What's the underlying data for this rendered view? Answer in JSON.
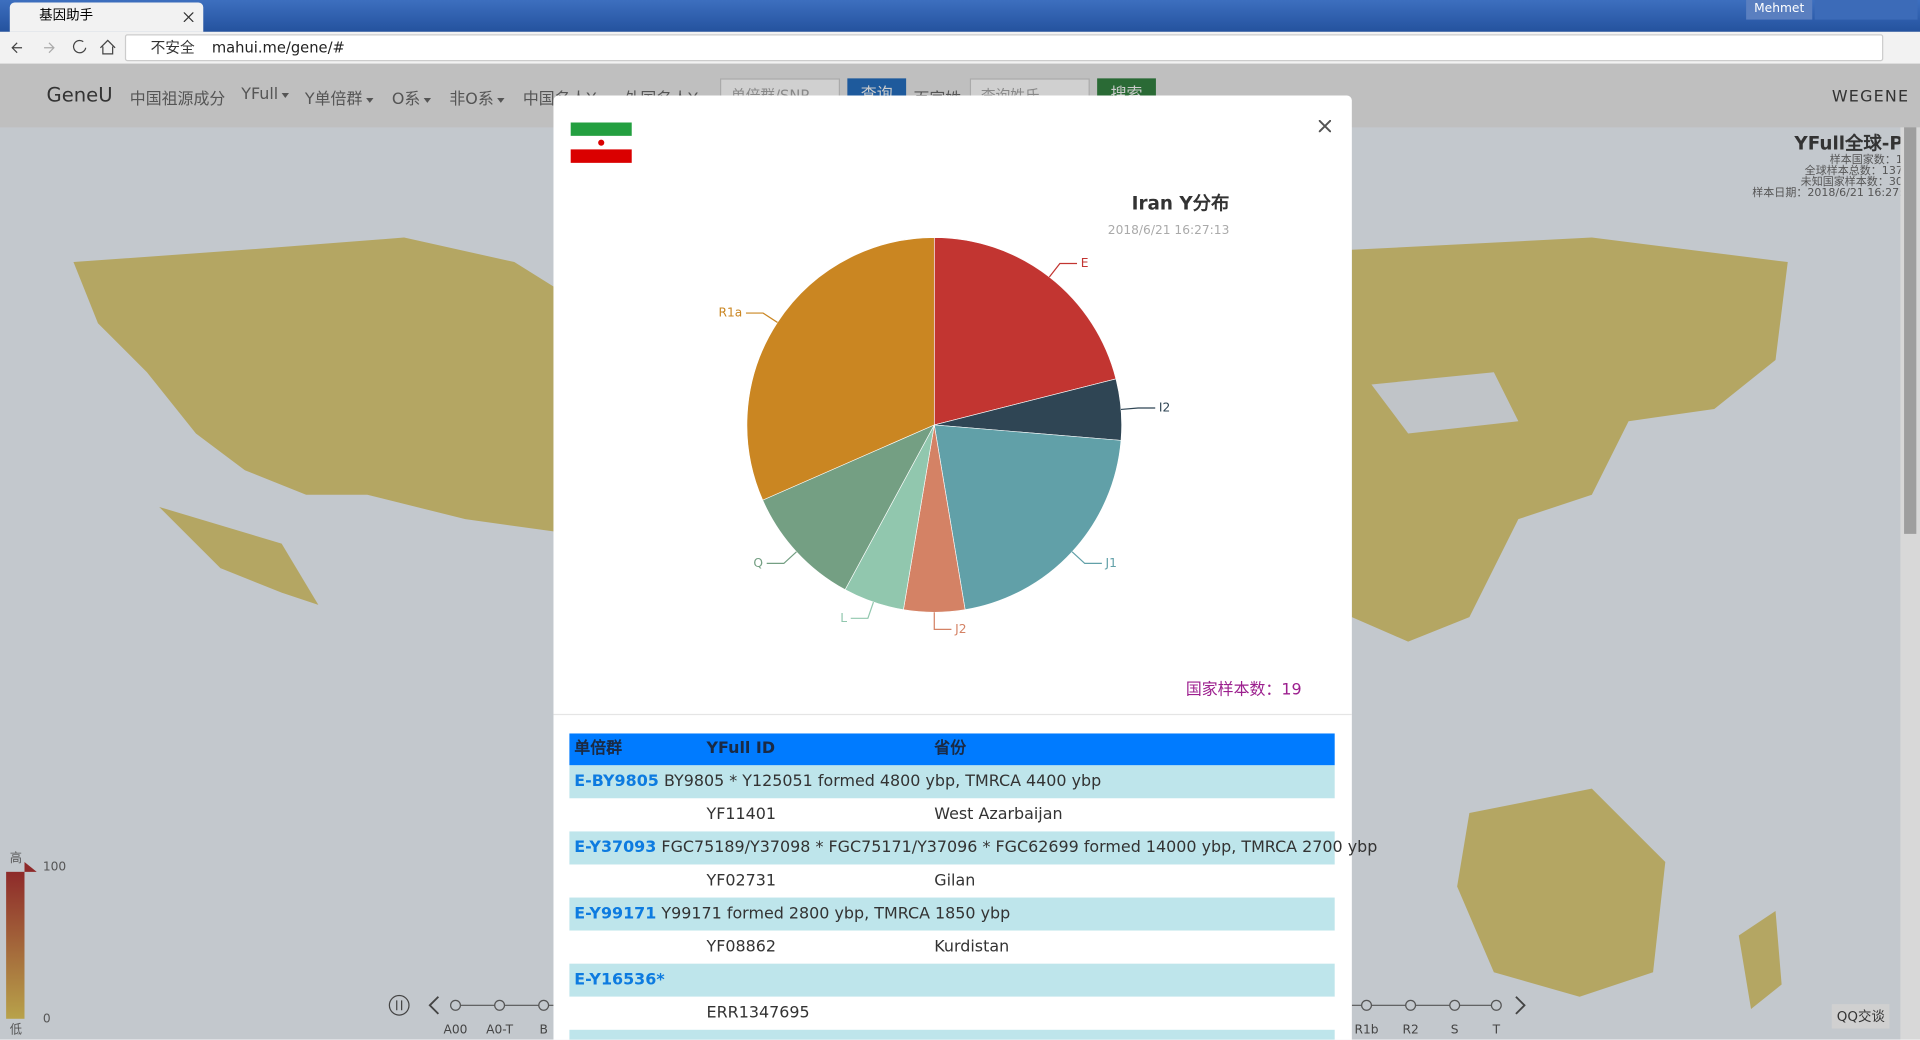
{
  "browser": {
    "tab_title": "基因助手",
    "insecure": "不安全",
    "url": "mahui.me/gene/#",
    "user": "Mehmet"
  },
  "nav": {
    "brand": "GeneU",
    "items": [
      {
        "label": "中国祖源成分"
      },
      {
        "label": "YFull",
        "dropdown": true
      },
      {
        "label": "Y单倍群",
        "dropdown": true
      },
      {
        "label": "O系",
        "dropdown": true
      },
      {
        "label": "非O系",
        "dropdown": true
      },
      {
        "label": "中国名人Y",
        "dropdown": true
      },
      {
        "label": "外国名人Y",
        "dropdown": true
      }
    ],
    "snp_placeholder": "单倍群/SNP",
    "query_button": "查询",
    "surnames": "百家姓",
    "surname_placeholder": "查询姓氏",
    "search_button": "搜索",
    "partner": "WEGENE"
  },
  "map_panel": {
    "title": "YFull全球-P",
    "lines": [
      "样本国家数：1",
      "全球样本总数：137",
      "未知国家样本数：30",
      "样本日期：2018/6/21 16:27:"
    ]
  },
  "legend": {
    "high": "高",
    "max": "100",
    "min": "0",
    "low": "低"
  },
  "timeline": {
    "left": [
      "A00",
      "A0-T",
      "B"
    ],
    "right": [
      "R1b",
      "R2",
      "S",
      "T"
    ]
  },
  "chart_data": {
    "type": "pie",
    "title": "Iran Y分布",
    "subtitle": "2018/6/21 16:27:13",
    "categories": [
      "E",
      "I2",
      "J1",
      "J2",
      "L",
      "Q",
      "R1a"
    ],
    "values": [
      4,
      1,
      4,
      1,
      1,
      2,
      6
    ],
    "colors": [
      "#c23531",
      "#2f4554",
      "#61a0a8",
      "#d48265",
      "#91c7ae",
      "#749f83",
      "#ca8622"
    ]
  },
  "sample_count_label": "国家样本数：",
  "sample_count": 19,
  "table": {
    "headers": [
      "单倍群",
      "YFull ID",
      "省份"
    ],
    "groups": [
      {
        "haplogroup": "E-BY9805",
        "description": "BY9805 * Y125051 formed 4800 ybp, TMRCA 4400 ybp",
        "rows": [
          {
            "id": "YF11401",
            "province": "West Azarbaijan"
          }
        ]
      },
      {
        "haplogroup": "E-Y37093",
        "description": "FGC75189/Y37098 * FGC75171/Y37096 * FGC62699 formed 14000 ybp, TMRCA 2700 ybp",
        "rows": [
          {
            "id": "YF02731",
            "province": "Gilan"
          }
        ]
      },
      {
        "haplogroup": "E-Y99171",
        "description": "Y99171 formed 2800 ybp, TMRCA 1850 ybp",
        "rows": [
          {
            "id": "YF08862",
            "province": "Kurdistan"
          }
        ]
      },
      {
        "haplogroup": "E-Y16536*",
        "rows": [
          {
            "id": "ERR1347695"
          }
        ]
      }
    ]
  },
  "chat_widget": "QQ交谈"
}
